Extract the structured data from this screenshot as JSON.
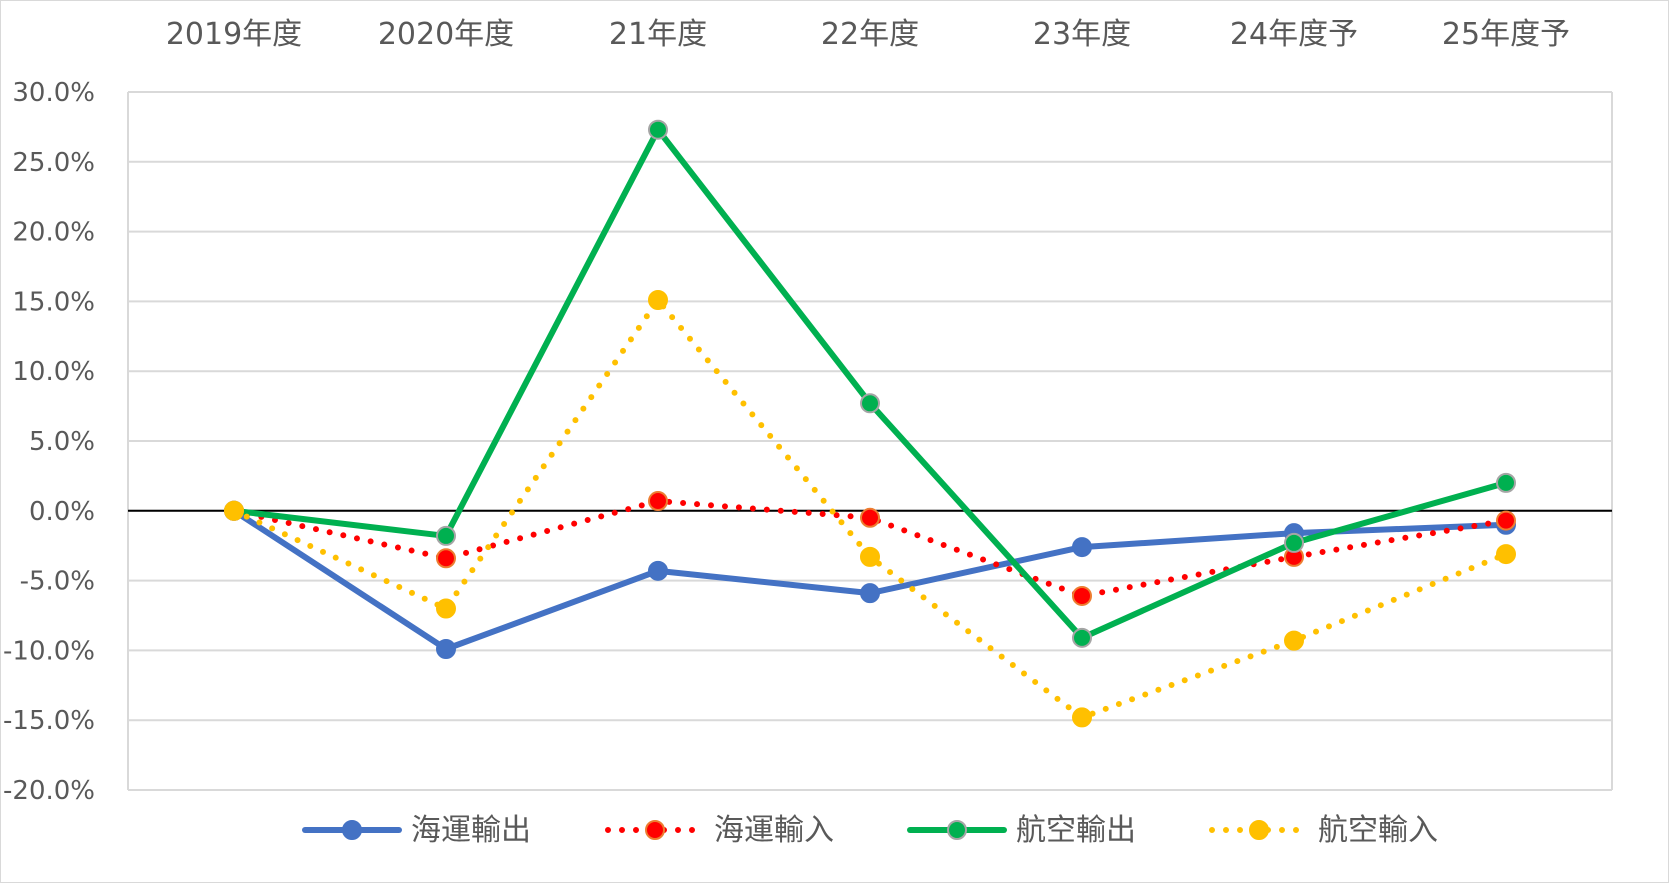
{
  "chart_data": {
    "type": "line",
    "categories": [
      "2019年度",
      "2020年度",
      "21年度",
      "22年度",
      "23年度",
      "24年度予",
      "25年度予"
    ],
    "y_ticks": [
      "30.0%",
      "25.0%",
      "20.0%",
      "15.0%",
      "10.0%",
      "5.0%",
      "0.0%",
      "-5.0%",
      "-10.0%",
      "-15.0%",
      "-20.0%"
    ],
    "ylim": [
      -20,
      30
    ],
    "y_tick_step": 5,
    "y_unit": "%",
    "grid": true,
    "x_axis_position": "top",
    "legend_position": "bottom",
    "series": [
      {
        "name": "海運輸出",
        "color": "#4472C4",
        "line_style": "solid",
        "marker_fill": "#4472C4",
        "marker_stroke": "#4472C4",
        "values": [
          0.0,
          -9.9,
          -4.3,
          -5.9,
          -2.6,
          -1.6,
          -1.0
        ]
      },
      {
        "name": "海運輸入",
        "color": "#FF0000",
        "line_style": "dotted",
        "marker_fill": "#FF0000",
        "marker_stroke": "#ED7D31",
        "values": [
          0.0,
          -3.4,
          0.7,
          -0.5,
          -6.1,
          -3.3,
          -0.7
        ]
      },
      {
        "name": "航空輸出",
        "color": "#00B050",
        "line_style": "solid",
        "marker_fill": "#00B050",
        "marker_stroke": "#A5A5A5",
        "values": [
          0.0,
          -1.8,
          27.3,
          7.7,
          -9.1,
          -2.3,
          2.0
        ]
      },
      {
        "name": "航空輸入",
        "color": "#FFC000",
        "line_style": "dotted",
        "marker_fill": "#FFC000",
        "marker_stroke": "#FFC000",
        "values": [
          0.0,
          -7.0,
          15.1,
          -3.3,
          -14.8,
          -9.3,
          -3.1
        ]
      }
    ]
  }
}
